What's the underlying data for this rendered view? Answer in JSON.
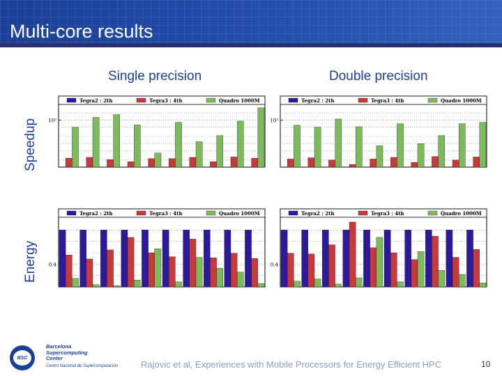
{
  "slide": {
    "title": "Multi-core results",
    "columns": [
      "Single precision",
      "Double precision"
    ],
    "rows": [
      "Speedup",
      "Energy"
    ],
    "footer": "Rajovic et al, Experiences with Mobile Processors for Energy Efficient HPC",
    "page_number": "10",
    "logo": {
      "abbr": "BSC",
      "line1": "Barcelona",
      "line2": "Supercomputing",
      "line3": "Center",
      "subtitle": "Centro Nacional de Supercomputación"
    }
  },
  "colors": {
    "tegra2": "#2b1a9c",
    "tegra3": "#c8393c",
    "quadro": "#7cba5c",
    "accent": "#1a3f96"
  },
  "chart_data": [
    {
      "id": "speedup-single",
      "type": "bar",
      "title": "",
      "y_scale": "log",
      "y_tick_label": "10²",
      "y_tick_value": 100,
      "ylim": [
        1,
        400
      ],
      "legend": "top",
      "categories": [
        "1",
        "2",
        "3",
        "4",
        "5",
        "6",
        "7",
        "8",
        "9",
        "10"
      ],
      "series": [
        {
          "name": "Tegra2 : 2th",
          "values": [
            1,
            1,
            1,
            1,
            1,
            1,
            1,
            1,
            1,
            1
          ]
        },
        {
          "name": "Tegra3 : 4th",
          "values": [
            2.4,
            2.6,
            2.1,
            1.7,
            2.3,
            2.3,
            2.6,
            1.7,
            2.7,
            2.4
          ]
        },
        {
          "name": "Quadro 1000M",
          "values": [
            50,
            130,
            170,
            62,
            4,
            80,
            12,
            22,
            90,
            330
          ]
        }
      ]
    },
    {
      "id": "speedup-double",
      "type": "bar",
      "title": "",
      "y_scale": "log",
      "y_tick_label": "10²",
      "y_tick_value": 100,
      "ylim": [
        1,
        400
      ],
      "legend": "top",
      "categories": [
        "1",
        "2",
        "3",
        "4",
        "5",
        "6",
        "7",
        "8",
        "9",
        "10"
      ],
      "series": [
        {
          "name": "Tegra2 : 2th",
          "values": [
            1,
            1,
            1,
            1,
            1,
            1,
            1,
            1,
            1,
            1
          ]
        },
        {
          "name": "Tegra3 : 4th",
          "values": [
            2.2,
            2.5,
            2,
            1.3,
            2.2,
            2.6,
            1.6,
            2.8,
            2,
            2.7
          ]
        },
        {
          "name": "Quadro 1000M",
          "values": [
            60,
            50,
            110,
            52,
            8,
            70,
            10,
            22,
            70,
            80
          ]
        }
      ]
    },
    {
      "id": "energy-single",
      "type": "bar",
      "title": "",
      "y_tick_label": "0.4",
      "y_tick_value": 0.4,
      "ylim": [
        0,
        1.2
      ],
      "legend": "top",
      "categories": [
        "1",
        "2",
        "3",
        "4",
        "5",
        "6",
        "7",
        "8",
        "9",
        "10"
      ],
      "series": [
        {
          "name": "Tegra2 : 2th",
          "values": [
            1,
            1,
            1,
            1,
            1,
            1,
            1,
            1,
            1,
            1
          ]
        },
        {
          "name": "Tegra3 : 4th",
          "values": [
            0.56,
            0.49,
            0.65,
            0.87,
            0.6,
            0.53,
            0.84,
            0.51,
            0.59,
            0.5
          ]
        },
        {
          "name": "Quadro 1000M",
          "values": [
            0.15,
            0.04,
            0.02,
            0.12,
            0.67,
            0.09,
            0.52,
            0.33,
            0.26,
            0.06
          ]
        }
      ]
    },
    {
      "id": "energy-double",
      "type": "bar",
      "title": "",
      "y_tick_label": "0.4",
      "y_tick_value": 0.4,
      "ylim": [
        0,
        1.2
      ],
      "legend": "top",
      "categories": [
        "1",
        "2",
        "3",
        "4",
        "5",
        "6",
        "7",
        "8",
        "9",
        "10"
      ],
      "series": [
        {
          "name": "Tegra2 : 2th",
          "values": [
            1,
            1,
            1,
            1,
            1,
            1,
            1,
            1,
            1,
            1
          ]
        },
        {
          "name": "Tegra3 : 4th",
          "values": [
            0.59,
            0.58,
            0.74,
            1.14,
            0.69,
            0.6,
            0.48,
            0.89,
            0.52,
            0.66
          ]
        },
        {
          "name": "Quadro 1000M",
          "values": [
            0.1,
            0.14,
            0.05,
            0.16,
            0.87,
            0.09,
            0.62,
            0.29,
            0.22,
            0.07
          ]
        }
      ]
    }
  ]
}
